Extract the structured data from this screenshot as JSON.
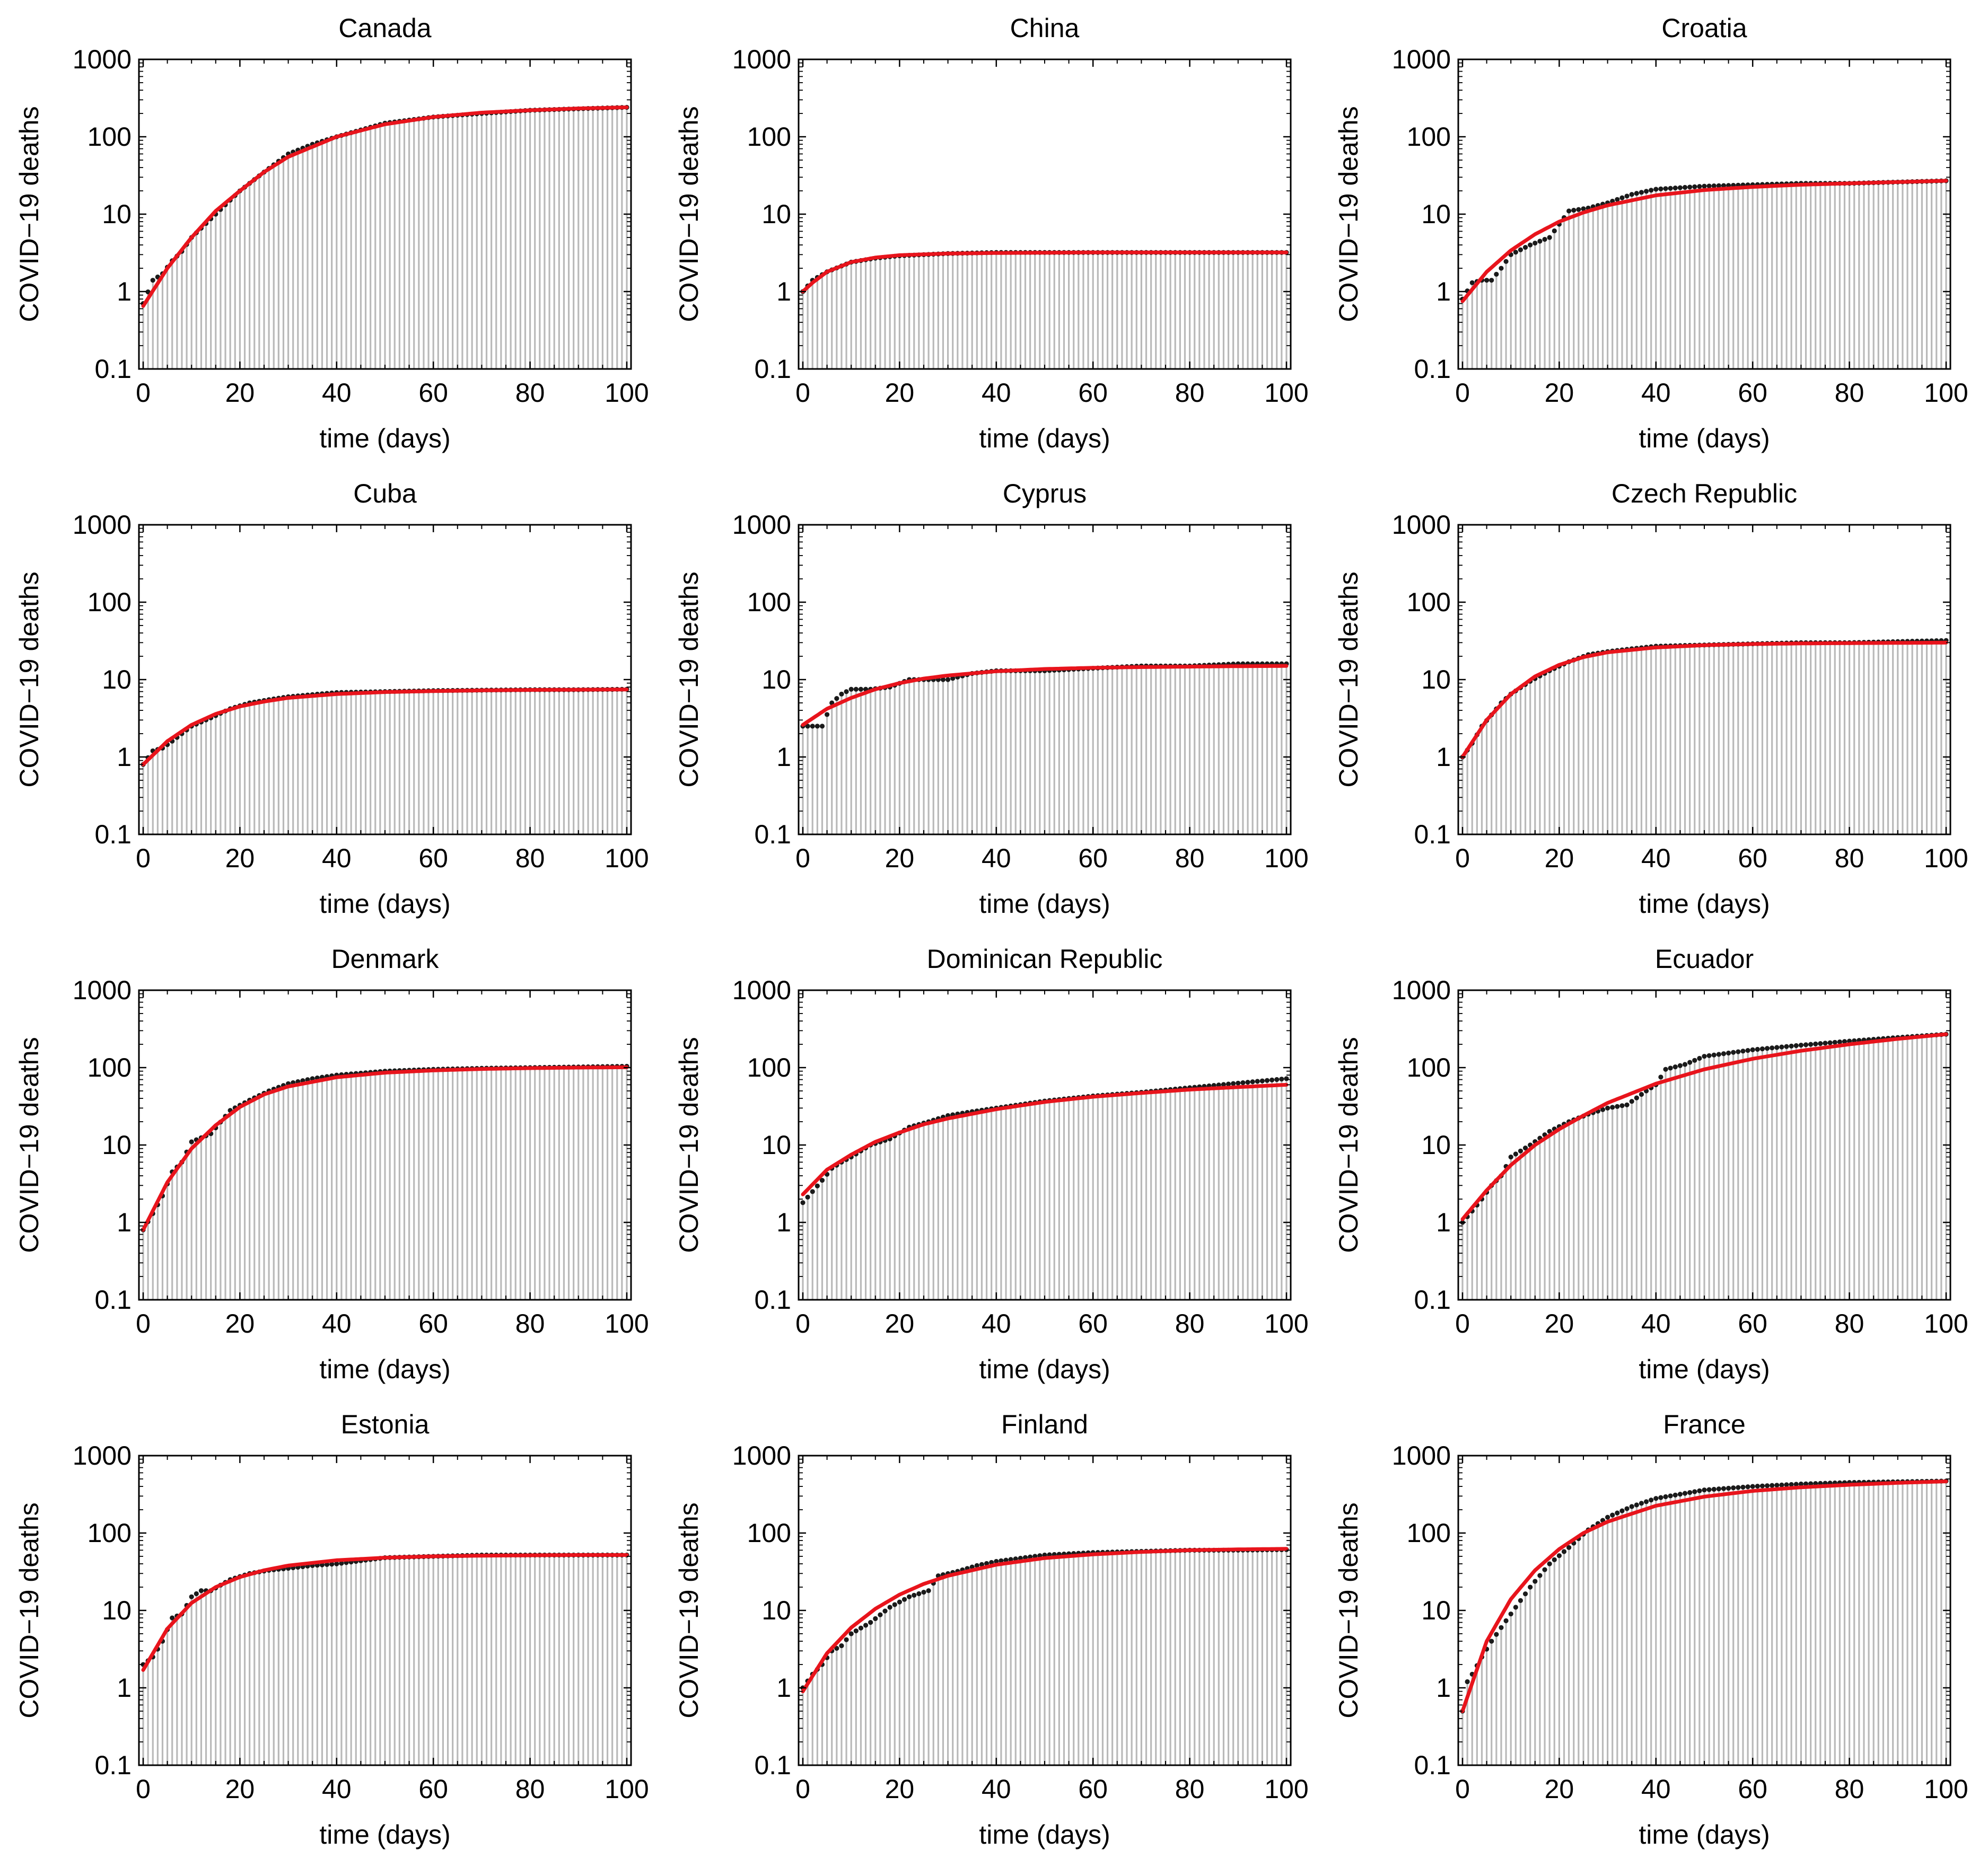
{
  "figure": {
    "x_axis_label": "time (days)",
    "y_axis_label": "COVID−19 deaths",
    "colors": {
      "fit": "#e8141c",
      "data_point": "#1a1a1a",
      "bar": "#b9b9b9",
      "frame": "#000000"
    }
  },
  "chart_data": [
    {
      "type": "bar+scatter+line",
      "title": "Canada",
      "xlabel": "time (days)",
      "ylabel": "COVID−19 deaths",
      "yscale": "log",
      "xlim": [
        0,
        100
      ],
      "ylim": [
        0.1,
        1000
      ],
      "xticks": [
        0,
        20,
        40,
        60,
        80,
        100
      ],
      "yticks": [
        "0.1",
        "1",
        "10",
        "100",
        "1000"
      ],
      "observed": {
        "x": [
          0,
          2,
          4,
          6,
          8,
          10,
          15,
          20,
          25,
          30,
          35,
          40,
          50,
          60,
          70,
          80,
          90,
          100
        ],
        "y": [
          0.7,
          1.4,
          1.7,
          2.5,
          3.3,
          5,
          10,
          20,
          35,
          60,
          80,
          100,
          150,
          180,
          200,
          220,
          230,
          240
        ]
      },
      "fit": {
        "x": [
          0,
          5,
          10,
          15,
          20,
          25,
          30,
          40,
          50,
          60,
          70,
          80,
          90,
          100
        ],
        "y": [
          0.65,
          2,
          5,
          11,
          20,
          35,
          55,
          100,
          145,
          180,
          205,
          220,
          232,
          240
        ]
      }
    },
    {
      "type": "bar+scatter+line",
      "title": "China",
      "xlabel": "time (days)",
      "ylabel": "COVID−19 deaths",
      "yscale": "log",
      "xlim": [
        0,
        100
      ],
      "ylim": [
        0.1,
        1000
      ],
      "xticks": [
        0,
        20,
        40,
        60,
        80,
        100
      ],
      "yticks": [
        "0.1",
        "1",
        "10",
        "100",
        "1000"
      ],
      "observed": {
        "x": [
          0,
          2,
          5,
          10,
          15,
          20,
          30,
          40,
          60,
          80,
          100
        ],
        "y": [
          1,
          1.4,
          1.8,
          2.4,
          2.7,
          2.9,
          3.1,
          3.2,
          3.2,
          3.2,
          3.2
        ]
      },
      "fit": {
        "x": [
          0,
          2,
          5,
          10,
          15,
          20,
          30,
          40,
          60,
          80,
          100
        ],
        "y": [
          1,
          1.3,
          1.8,
          2.4,
          2.75,
          2.95,
          3.1,
          3.15,
          3.2,
          3.2,
          3.2
        ]
      }
    },
    {
      "type": "bar+scatter+line",
      "title": "Croatia",
      "xlabel": "time (days)",
      "ylabel": "COVID−19 deaths",
      "yscale": "log",
      "xlim": [
        0,
        100
      ],
      "ylim": [
        0.1,
        1000
      ],
      "xticks": [
        0,
        20,
        40,
        60,
        80,
        100
      ],
      "yticks": [
        "0.1",
        "1",
        "10",
        "100",
        "1000"
      ],
      "observed": {
        "x": [
          0,
          2,
          4,
          6,
          8,
          10,
          14,
          18,
          22,
          26,
          30,
          35,
          40,
          50,
          60,
          70,
          80,
          90,
          100
        ],
        "y": [
          0.8,
          1.3,
          1.4,
          1.4,
          2,
          3,
          4,
          5,
          11,
          12,
          14,
          18,
          21,
          23,
          24,
          25,
          25,
          26,
          27
        ]
      },
      "fit": {
        "x": [
          0,
          5,
          10,
          15,
          20,
          25,
          30,
          40,
          50,
          60,
          70,
          80,
          90,
          100
        ],
        "y": [
          0.75,
          1.8,
          3.4,
          5.5,
          8,
          10.5,
          13,
          17.5,
          20.5,
          22.5,
          24,
          25,
          26,
          27
        ]
      }
    },
    {
      "type": "bar+scatter+line",
      "title": "Cuba",
      "xlabel": "time (days)",
      "ylabel": "COVID−19 deaths",
      "yscale": "log",
      "xlim": [
        0,
        100
      ],
      "ylim": [
        0.1,
        1000
      ],
      "xticks": [
        0,
        20,
        40,
        60,
        80,
        100
      ],
      "yticks": [
        "0.1",
        "1",
        "10",
        "100",
        "1000"
      ],
      "observed": {
        "x": [
          0,
          2,
          4,
          6,
          8,
          10,
          14,
          18,
          22,
          26,
          30,
          35,
          40,
          50,
          60,
          70,
          80,
          90,
          100
        ],
        "y": [
          0.8,
          1.2,
          1.3,
          1.6,
          2,
          2.5,
          3.2,
          4.2,
          5,
          5.5,
          6,
          6.4,
          6.8,
          7,
          7.2,
          7.3,
          7.4,
          7.4,
          7.5
        ]
      },
      "fit": {
        "x": [
          0,
          5,
          10,
          15,
          20,
          25,
          30,
          40,
          50,
          60,
          70,
          80,
          90,
          100
        ],
        "y": [
          0.8,
          1.6,
          2.6,
          3.6,
          4.5,
          5.2,
          5.8,
          6.5,
          6.9,
          7.1,
          7.25,
          7.35,
          7.4,
          7.45
        ]
      }
    },
    {
      "type": "bar+scatter+line",
      "title": "Cyprus",
      "xlabel": "time (days)",
      "ylabel": "COVID−19 deaths",
      "yscale": "log",
      "xlim": [
        0,
        100
      ],
      "ylim": [
        0.1,
        1000
      ],
      "xticks": [
        0,
        20,
        40,
        60,
        80,
        100
      ],
      "yticks": [
        "0.1",
        "1",
        "10",
        "100",
        "1000"
      ],
      "observed": {
        "x": [
          0,
          2,
          4,
          6,
          8,
          10,
          14,
          18,
          22,
          26,
          30,
          35,
          40,
          50,
          60,
          70,
          80,
          90,
          100
        ],
        "y": [
          2.5,
          2.5,
          2.5,
          5,
          6.5,
          7.5,
          7.5,
          8,
          10,
          10,
          10,
          12,
          13,
          13,
          14,
          15,
          15,
          16,
          16
        ]
      },
      "fit": {
        "x": [
          0,
          5,
          10,
          15,
          20,
          25,
          30,
          40,
          50,
          60,
          70,
          80,
          90,
          100
        ],
        "y": [
          2.6,
          4.2,
          5.8,
          7.5,
          9,
          10.3,
          11.3,
          12.8,
          13.7,
          14.2,
          14.5,
          14.7,
          14.9,
          15
        ]
      }
    },
    {
      "type": "bar+scatter+line",
      "title": "Czech Republic",
      "xlabel": "time (days)",
      "ylabel": "COVID−19 deaths",
      "yscale": "log",
      "xlim": [
        0,
        100
      ],
      "ylim": [
        0.1,
        1000
      ],
      "xticks": [
        0,
        20,
        40,
        60,
        80,
        100
      ],
      "yticks": [
        "0.1",
        "1",
        "10",
        "100",
        "1000"
      ],
      "observed": {
        "x": [
          0,
          2,
          4,
          6,
          8,
          10,
          14,
          18,
          22,
          26,
          30,
          35,
          40,
          50,
          60,
          70,
          80,
          90,
          100
        ],
        "y": [
          1,
          1.5,
          2.5,
          3.5,
          5,
          6.5,
          9.5,
          13,
          17,
          21,
          23,
          25,
          27,
          28,
          29,
          30,
          30,
          31,
          32
        ]
      },
      "fit": {
        "x": [
          0,
          5,
          10,
          15,
          20,
          25,
          30,
          40,
          50,
          60,
          70,
          80,
          90,
          100
        ],
        "y": [
          1,
          3,
          6.5,
          11,
          15.5,
          19.5,
          22.5,
          26,
          27.8,
          28.8,
          29.3,
          29.6,
          29.8,
          30
        ]
      }
    },
    {
      "type": "bar+scatter+line",
      "title": "Denmark",
      "xlabel": "time (days)",
      "ylabel": "COVID−19 deaths",
      "yscale": "log",
      "xlim": [
        0,
        100
      ],
      "ylim": [
        0.1,
        1000
      ],
      "xticks": [
        0,
        20,
        40,
        60,
        80,
        100
      ],
      "yticks": [
        "0.1",
        "1",
        "10",
        "100",
        "1000"
      ],
      "observed": {
        "x": [
          0,
          2,
          4,
          6,
          8,
          10,
          14,
          18,
          22,
          26,
          30,
          35,
          40,
          50,
          60,
          70,
          80,
          90,
          100
        ],
        "y": [
          0.8,
          1.3,
          2.2,
          4.5,
          6,
          11,
          14,
          28,
          38,
          50,
          62,
          72,
          80,
          90,
          95,
          98,
          100,
          102,
          104
        ]
      },
      "fit": {
        "x": [
          0,
          5,
          10,
          15,
          20,
          25,
          30,
          40,
          50,
          60,
          70,
          80,
          90,
          100
        ],
        "y": [
          0.8,
          3.3,
          9,
          18,
          31,
          45,
          57,
          75,
          86,
          92,
          96,
          98.5,
          100,
          101
        ]
      }
    },
    {
      "type": "bar+scatter+line",
      "title": "Dominican Republic",
      "xlabel": "time (days)",
      "ylabel": "COVID−19 deaths",
      "yscale": "log",
      "xlim": [
        0,
        100
      ],
      "ylim": [
        0.1,
        1000
      ],
      "xticks": [
        0,
        20,
        40,
        60,
        80,
        100
      ],
      "yticks": [
        "0.1",
        "1",
        "10",
        "100",
        "1000"
      ],
      "observed": {
        "x": [
          0,
          2,
          4,
          6,
          8,
          10,
          14,
          18,
          22,
          26,
          30,
          35,
          40,
          50,
          60,
          70,
          80,
          90,
          100
        ],
        "y": [
          1.8,
          2.5,
          3.5,
          5,
          6,
          7,
          10,
          12,
          17,
          20,
          24,
          27,
          30,
          37,
          43,
          48,
          55,
          63,
          72
        ]
      },
      "fit": {
        "x": [
          0,
          5,
          10,
          15,
          20,
          25,
          30,
          40,
          50,
          60,
          70,
          80,
          90,
          100
        ],
        "y": [
          2.3,
          4.8,
          7.5,
          11,
          14.5,
          18.5,
          22,
          29,
          36,
          42,
          47,
          52,
          56,
          60
        ]
      }
    },
    {
      "type": "bar+scatter+line",
      "title": "Ecuador",
      "xlabel": "time (days)",
      "ylabel": "COVID−19 deaths",
      "yscale": "log",
      "xlim": [
        0,
        100
      ],
      "ylim": [
        0.1,
        1000
      ],
      "xticks": [
        0,
        20,
        40,
        60,
        80,
        100
      ],
      "yticks": [
        "0.1",
        "1",
        "10",
        "100",
        "1000"
      ],
      "observed": {
        "x": [
          0,
          2,
          4,
          6,
          8,
          10,
          14,
          18,
          22,
          26,
          30,
          34,
          38,
          40,
          42,
          46,
          50,
          60,
          70,
          80,
          90,
          100
        ],
        "y": [
          1,
          1.4,
          2,
          3,
          4,
          7,
          10,
          15,
          20,
          25,
          30,
          33,
          50,
          60,
          95,
          110,
          140,
          170,
          195,
          220,
          245,
          270
        ]
      },
      "fit": {
        "x": [
          0,
          5,
          10,
          15,
          20,
          25,
          30,
          40,
          50,
          60,
          70,
          80,
          90,
          100
        ],
        "y": [
          1.1,
          2.6,
          5.5,
          10,
          16,
          24,
          35,
          62,
          95,
          130,
          165,
          200,
          235,
          270
        ]
      }
    },
    {
      "type": "bar+scatter+line",
      "title": "Estonia",
      "xlabel": "time (days)",
      "ylabel": "COVID−19 deaths",
      "yscale": "log",
      "xlim": [
        0,
        100
      ],
      "ylim": [
        0.1,
        1000
      ],
      "xticks": [
        0,
        20,
        40,
        60,
        80,
        100
      ],
      "yticks": [
        "0.1",
        "1",
        "10",
        "100",
        "1000"
      ],
      "observed": {
        "x": [
          0,
          2,
          4,
          6,
          8,
          10,
          12,
          14,
          18,
          22,
          26,
          30,
          35,
          40,
          50,
          60,
          70,
          80,
          90,
          100
        ],
        "y": [
          2,
          2.5,
          4,
          8,
          9,
          15,
          18,
          18,
          25,
          30,
          33,
          35,
          38,
          40,
          48,
          50,
          52,
          52,
          52,
          52
        ]
      },
      "fit": {
        "x": [
          0,
          5,
          10,
          15,
          20,
          25,
          30,
          40,
          50,
          60,
          70,
          80,
          90,
          100
        ],
        "y": [
          1.7,
          5.8,
          12.5,
          20,
          27,
          33,
          38,
          44.5,
          48,
          50,
          51,
          51.5,
          52,
          52
        ]
      }
    },
    {
      "type": "bar+scatter+line",
      "title": "Finland",
      "xlabel": "time (days)",
      "ylabel": "COVID−19 deaths",
      "yscale": "log",
      "xlim": [
        0,
        100
      ],
      "ylim": [
        0.1,
        1000
      ],
      "xticks": [
        0,
        20,
        40,
        60,
        80,
        100
      ],
      "yticks": [
        "0.1",
        "1",
        "10",
        "100",
        "1000"
      ],
      "observed": {
        "x": [
          0,
          2,
          4,
          6,
          8,
          10,
          14,
          18,
          22,
          26,
          28,
          32,
          36,
          40,
          50,
          60,
          70,
          80,
          90,
          100
        ],
        "y": [
          1,
          1.5,
          2,
          3,
          3.5,
          5,
          7,
          11,
          15,
          18,
          28,
          32,
          38,
          43,
          52,
          56,
          58,
          60,
          60,
          61
        ]
      },
      "fit": {
        "x": [
          0,
          5,
          10,
          15,
          20,
          25,
          30,
          40,
          50,
          60,
          70,
          80,
          90,
          100
        ],
        "y": [
          0.9,
          2.8,
          6,
          10.5,
          16,
          22,
          28,
          39,
          47.5,
          53,
          57,
          60,
          61.5,
          62.5
        ]
      }
    },
    {
      "type": "bar+scatter+line",
      "title": "France",
      "xlabel": "time (days)",
      "ylabel": "COVID−19 deaths",
      "yscale": "log",
      "xlim": [
        0,
        100
      ],
      "ylim": [
        0.1,
        1000
      ],
      "xticks": [
        0,
        20,
        40,
        60,
        80,
        100
      ],
      "yticks": [
        "0.1",
        "1",
        "10",
        "100",
        "1000"
      ],
      "observed": {
        "x": [
          0,
          1,
          2,
          4,
          6,
          8,
          10,
          14,
          18,
          22,
          26,
          30,
          35,
          40,
          50,
          60,
          70,
          80,
          90,
          100
        ],
        "y": [
          0.5,
          1.2,
          1.5,
          2.5,
          4,
          6,
          9,
          20,
          40,
          65,
          110,
          160,
          220,
          280,
          360,
          400,
          430,
          450,
          460,
          470
        ]
      },
      "fit": {
        "x": [
          0,
          5,
          10,
          15,
          20,
          25,
          30,
          40,
          50,
          60,
          70,
          80,
          90,
          100
        ],
        "y": [
          0.5,
          4,
          14,
          33,
          62,
          100,
          140,
          225,
          295,
          350,
          390,
          420,
          445,
          465
        ]
      }
    }
  ]
}
